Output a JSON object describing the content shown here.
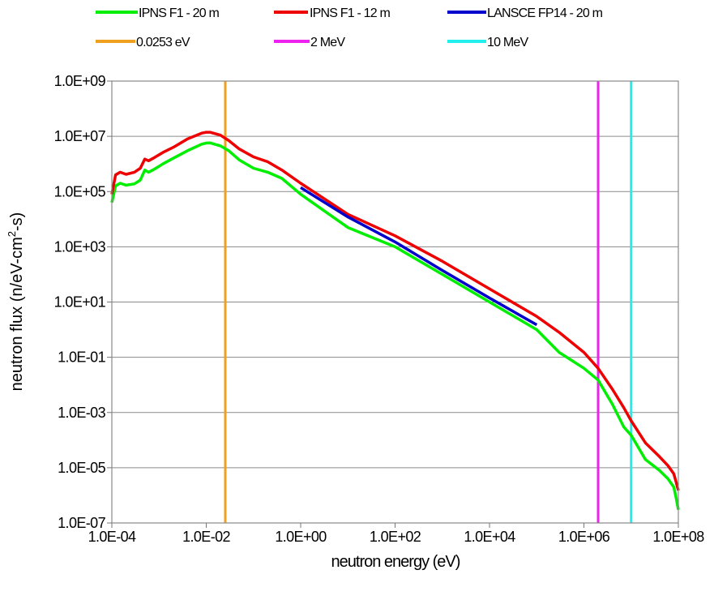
{
  "chart_data": {
    "type": "line",
    "title": "",
    "xlabel": "neutron energy (eV)",
    "ylabel_parts": [
      "neutron flux (n/eV-cm",
      "2",
      "-s)"
    ],
    "xscale": "log",
    "yscale": "log",
    "xlim": [
      0.0001,
      100000000
    ],
    "ylim": [
      1e-07,
      1000000000.0
    ],
    "grid": "horizontal",
    "legend_position": "top",
    "x_tick_labels": [
      "1.0E-04",
      "1.0E-02",
      "1.0E+00",
      "1.0E+02",
      "1.0E+04",
      "1.0E+06",
      "1.0E+08"
    ],
    "x_tick_values": [
      0.0001,
      0.01,
      1,
      100,
      10000,
      1000000,
      100000000
    ],
    "y_tick_labels": [
      "1.0E+09",
      "1.0E+07",
      "1.0E+05",
      "1.0E+03",
      "1.0E+01",
      "1.0E-01",
      "1.0E-03",
      "1.0E-05",
      "1.0E-07"
    ],
    "y_tick_values": [
      1000000000.0,
      10000000.0,
      100000.0,
      1000.0,
      10.0,
      0.1,
      0.001,
      1e-05,
      1e-07
    ],
    "series": [
      {
        "name": "IPNS F1 - 20 m",
        "color": "#00ee00",
        "points": [
          [
            0.0001,
            40000.0
          ],
          [
            0.00012,
            160000.0
          ],
          [
            0.00015,
            200000.0
          ],
          [
            0.0002,
            170000.0
          ],
          [
            0.0003,
            190000.0
          ],
          [
            0.0004,
            260000.0
          ],
          [
            0.0005,
            600000.0
          ],
          [
            0.0006,
            500000.0
          ],
          [
            0.0008,
            650000.0
          ],
          [
            0.0012,
            1000000.0
          ],
          [
            0.002,
            1600000.0
          ],
          [
            0.004,
            3000000.0
          ],
          [
            0.008,
            5200000.0
          ],
          [
            0.01,
            5700000.0
          ],
          [
            0.012,
            5800000.0
          ],
          [
            0.02,
            4500000.0
          ],
          [
            0.03,
            3000000.0
          ],
          [
            0.05,
            1400000.0
          ],
          [
            0.1,
            700000.0
          ],
          [
            0.2,
            500000.0
          ],
          [
            0.4,
            300000.0
          ],
          [
            1,
            80000.0
          ],
          [
            10,
            5000.0
          ],
          [
            100,
            1000.0
          ],
          [
            1000,
            100.0
          ],
          [
            10000,
            10.0
          ],
          [
            100000,
            1.0
          ],
          [
            300000,
            0.15
          ],
          [
            1000000,
            0.04
          ],
          [
            2000000,
            0.015
          ],
          [
            4000000,
            0.002
          ],
          [
            7000000,
            0.0003
          ],
          [
            10000000,
            0.00015
          ],
          [
            20000000,
            2e-05
          ],
          [
            40000000,
            8e-06
          ],
          [
            60000000,
            4e-06
          ],
          [
            80000000,
            2e-06
          ],
          [
            90000000,
            8e-07
          ],
          [
            100000000,
            3e-07
          ]
        ]
      },
      {
        "name": "IPNS F1 - 12 m",
        "color": "#ee0000",
        "points": [
          [
            0.0001,
            80000.0
          ],
          [
            0.00012,
            400000.0
          ],
          [
            0.00015,
            500000.0
          ],
          [
            0.0002,
            420000.0
          ],
          [
            0.0003,
            500000.0
          ],
          [
            0.0004,
            700000.0
          ],
          [
            0.0005,
            1500000.0
          ],
          [
            0.0006,
            1300000.0
          ],
          [
            0.0008,
            1700000.0
          ],
          [
            0.0012,
            2600000.0
          ],
          [
            0.002,
            4000000.0
          ],
          [
            0.004,
            8000000.0
          ],
          [
            0.008,
            13000000.0
          ],
          [
            0.01,
            14000000.0
          ],
          [
            0.012,
            14000000.0
          ],
          [
            0.02,
            11000000.0
          ],
          [
            0.03,
            7000000.0
          ],
          [
            0.05,
            3500000.0
          ],
          [
            0.1,
            1800000.0
          ],
          [
            0.2,
            1200000.0
          ],
          [
            0.4,
            600000.0
          ],
          [
            1,
            200000.0
          ],
          [
            10,
            15000.0
          ],
          [
            100,
            2500.0
          ],
          [
            1000,
            300.0
          ],
          [
            10000,
            30.0
          ],
          [
            100000,
            3.0
          ],
          [
            300000,
            0.8
          ],
          [
            1000000,
            0.15
          ],
          [
            2000000,
            0.04
          ],
          [
            4000000,
            0.007
          ],
          [
            7000000,
            0.0015
          ],
          [
            10000000,
            0.0005
          ],
          [
            20000000,
            8e-05
          ],
          [
            40000000,
            2.5e-05
          ],
          [
            60000000,
            1.2e-05
          ],
          [
            80000000,
            6e-06
          ],
          [
            90000000,
            3e-06
          ],
          [
            100000000,
            1.5e-06
          ]
        ]
      },
      {
        "name": "LANSCE FP14 - 20 m",
        "color": "#0000cc",
        "points": [
          [
            1,
            140000.0
          ],
          [
            10,
            12000.0
          ],
          [
            100,
            1500.0
          ],
          [
            1000,
            140.0
          ],
          [
            10000,
            14.0
          ],
          [
            100000,
            1.5
          ]
        ]
      },
      {
        "name": "0.0253 eV",
        "color": "#f0a020",
        "vertical_at": 0.0253
      },
      {
        "name": "2 MeV",
        "color": "#ee22ee",
        "vertical_at": 2000000
      },
      {
        "name": "10 MeV",
        "color": "#22eeee",
        "vertical_at": 10000000
      }
    ]
  }
}
